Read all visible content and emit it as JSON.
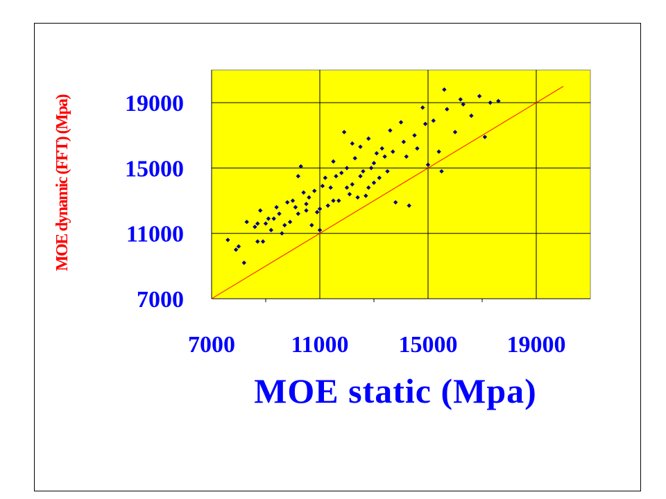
{
  "chart_data": {
    "type": "scatter",
    "title": "",
    "xlabel": "MOE static (Mpa)",
    "ylabel": "MOE dynamic (FFT) (Mpa)",
    "xlim": [
      7000,
      21000
    ],
    "ylim": [
      7000,
      21000
    ],
    "x_ticks": [
      "7000",
      "11000",
      "15000",
      "19000"
    ],
    "y_ticks": [
      "7000",
      "11000",
      "15000",
      "19000"
    ],
    "grid": true,
    "background_color": "#ffff00",
    "point_color": "#00008b",
    "reference_line": {
      "label": "",
      "x": [
        7000,
        20000
      ],
      "y": [
        7000,
        20000
      ],
      "color": "#ff0000"
    },
    "series": [
      {
        "points": [
          [
            7600,
            10600
          ],
          [
            7900,
            10000
          ],
          [
            8000,
            10200
          ],
          [
            8200,
            9200
          ],
          [
            8300,
            11700
          ],
          [
            8600,
            11400
          ],
          [
            8700,
            10500
          ],
          [
            8800,
            12400
          ],
          [
            8900,
            10500
          ],
          [
            9000,
            11600
          ],
          [
            9200,
            11200
          ],
          [
            9300,
            11900
          ],
          [
            9500,
            12200
          ],
          [
            9600,
            11000
          ],
          [
            9700,
            11500
          ],
          [
            9800,
            12900
          ],
          [
            9900,
            11700
          ],
          [
            10000,
            13000
          ],
          [
            10100,
            12600
          ],
          [
            10200,
            12200
          ],
          [
            10300,
            15100
          ],
          [
            10400,
            13500
          ],
          [
            10500,
            12400
          ],
          [
            10600,
            13200
          ],
          [
            10700,
            11500
          ],
          [
            10800,
            13600
          ],
          [
            10900,
            12300
          ],
          [
            11000,
            12500
          ],
          [
            11100,
            13900
          ],
          [
            11200,
            14400
          ],
          [
            11300,
            12700
          ],
          [
            11400,
            13800
          ],
          [
            11500,
            15400
          ],
          [
            11600,
            14500
          ],
          [
            11700,
            13000
          ],
          [
            11800,
            14700
          ],
          [
            11900,
            17200
          ],
          [
            12000,
            15000
          ],
          [
            12100,
            13400
          ],
          [
            12200,
            14000
          ],
          [
            12300,
            15600
          ],
          [
            12400,
            13200
          ],
          [
            12500,
            16300
          ],
          [
            12600,
            14800
          ],
          [
            12700,
            13300
          ],
          [
            12800,
            16800
          ],
          [
            12900,
            15000
          ],
          [
            13000,
            14100
          ],
          [
            13100,
            15900
          ],
          [
            13200,
            14400
          ],
          [
            13300,
            16200
          ],
          [
            13400,
            15700
          ],
          [
            13500,
            14800
          ],
          [
            13600,
            17300
          ],
          [
            13700,
            16000
          ],
          [
            13800,
            12900
          ],
          [
            14000,
            17800
          ],
          [
            14100,
            16600
          ],
          [
            14200,
            15700
          ],
          [
            14300,
            12700
          ],
          [
            14500,
            17000
          ],
          [
            14600,
            16200
          ],
          [
            14800,
            18700
          ],
          [
            14900,
            17700
          ],
          [
            15000,
            15200
          ],
          [
            15200,
            17900
          ],
          [
            15400,
            16000
          ],
          [
            15500,
            14800
          ],
          [
            15600,
            19800
          ],
          [
            15700,
            18600
          ],
          [
            16000,
            17200
          ],
          [
            16200,
            19200
          ],
          [
            16300,
            18900
          ],
          [
            16600,
            18200
          ],
          [
            16900,
            19400
          ],
          [
            17100,
            16900
          ],
          [
            17300,
            19000
          ],
          [
            17600,
            19100
          ],
          [
            10200,
            14500
          ],
          [
            10500,
            12800
          ],
          [
            11000,
            11200
          ],
          [
            11500,
            13000
          ],
          [
            12000,
            13800
          ],
          [
            12500,
            14500
          ],
          [
            13000,
            15300
          ],
          [
            9400,
            12600
          ],
          [
            9100,
            11900
          ],
          [
            8700,
            11600
          ],
          [
            12200,
            16500
          ],
          [
            12800,
            13800
          ]
        ]
      }
    ]
  }
}
